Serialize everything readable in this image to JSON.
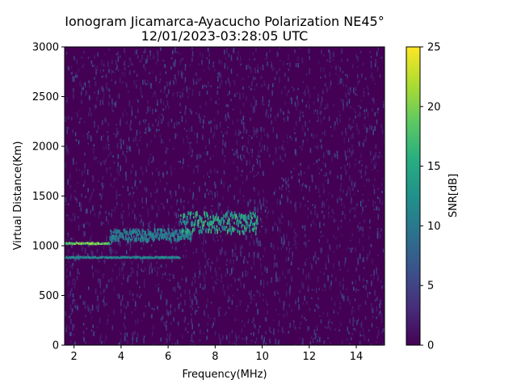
{
  "chart_data": {
    "type": "heatmap",
    "title": "Ionogram Jicamarca-Ayacucho Polarization NE45°",
    "subtitle": "12/01/2023-03:28:05 UTC",
    "xlabel": "Frequency(MHz)",
    "ylabel": "Virtual Distance(Km)",
    "xlim": [
      1.6,
      15.2
    ],
    "ylim": [
      0,
      3000
    ],
    "x_ticks": [
      2,
      4,
      6,
      8,
      10,
      12,
      14
    ],
    "y_ticks": [
      0,
      500,
      1000,
      1500,
      2000,
      2500,
      3000
    ],
    "grid": false,
    "colormap": "viridis",
    "colorbar": {
      "label": "SNR[dB]",
      "range": [
        0,
        25
      ],
      "ticks": [
        0,
        5,
        10,
        15,
        20,
        25
      ]
    },
    "background_color": "#440154",
    "traces": [
      {
        "description": "strong echo trace",
        "freq_range": [
          1.6,
          3.5
        ],
        "distance_km": 1030,
        "snr_db": 22
      },
      {
        "description": "lower echo trace",
        "freq_range": [
          1.6,
          6.5
        ],
        "distance_km": 890,
        "snr_db": 13
      },
      {
        "description": "rising diffuse echoes",
        "freq_range": [
          3.5,
          7.0
        ],
        "distance_km": [
          1070,
          1180
        ],
        "snr_db": 12
      },
      {
        "description": "spread echo cluster",
        "freq_range": [
          6.5,
          9.8
        ],
        "distance_km": [
          1150,
          1350
        ],
        "snr_db": 16
      }
    ]
  }
}
